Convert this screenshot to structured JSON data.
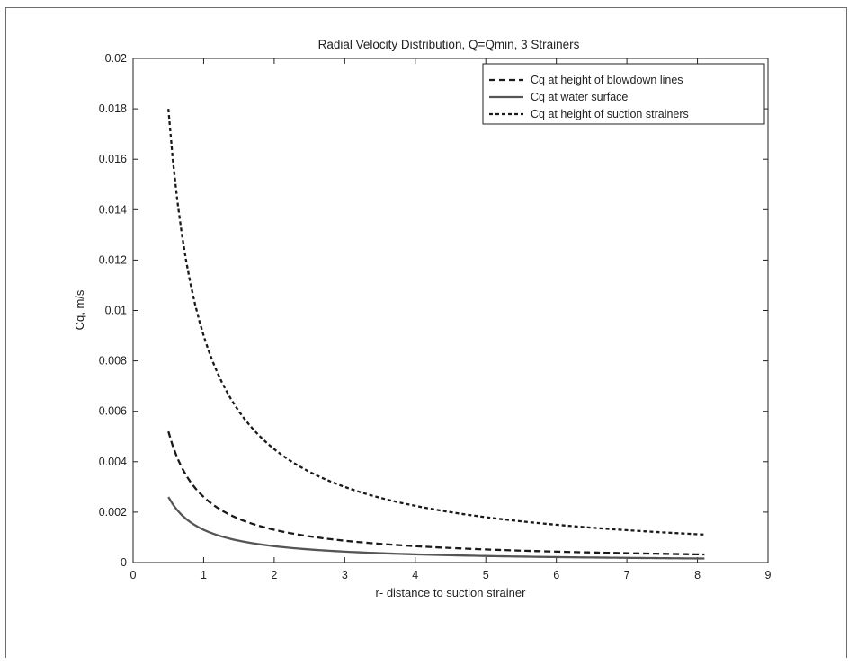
{
  "chart_data": {
    "type": "line",
    "title": "Radial Velocity Distribution, Q=Qmin, 3 Strainers",
    "xlabel": "r- distance to suction strainer",
    "ylabel": "Cq, m/s",
    "xlim": [
      0,
      9
    ],
    "ylim": [
      0,
      0.02
    ],
    "xticks": [
      0,
      1,
      2,
      3,
      4,
      5,
      6,
      7,
      8,
      9
    ],
    "yticks": [
      0,
      0.002,
      0.004,
      0.006,
      0.008,
      0.01,
      0.012,
      0.014,
      0.016,
      0.018,
      0.02
    ],
    "xtick_labels": [
      "0",
      "1",
      "2",
      "3",
      "4",
      "5",
      "6",
      "7",
      "8",
      "9"
    ],
    "ytick_labels": [
      "0",
      "0.002",
      "0.004",
      "0.006",
      "0.008",
      "0.01",
      "0.012",
      "0.014",
      "0.016",
      "0.018",
      "0.02"
    ],
    "legend_position": "top-right",
    "grid": false,
    "series": [
      {
        "name": "Cq at height of blowdown lines",
        "style": "dashed",
        "color": "#1a1a1a",
        "x": [
          0.5,
          0.6,
          0.75,
          1.0,
          1.25,
          1.5,
          2.0,
          2.5,
          3.0,
          3.5,
          4.0,
          4.5,
          5.0,
          5.5,
          6.0,
          6.5,
          7.0,
          7.5,
          8.1
        ],
        "y": [
          0.0052,
          0.00433,
          0.00347,
          0.0026,
          0.00208,
          0.00173,
          0.0013,
          0.00104,
          0.00087,
          0.00074,
          0.00065,
          0.00058,
          0.00052,
          0.00047,
          0.00043,
          0.0004,
          0.00037,
          0.00035,
          0.00032
        ]
      },
      {
        "name": "Cq at water surface",
        "style": "solid",
        "color": "#555555",
        "x": [
          0.5,
          0.6,
          0.75,
          1.0,
          1.25,
          1.5,
          2.0,
          2.5,
          3.0,
          3.5,
          4.0,
          4.5,
          5.0,
          5.5,
          6.0,
          6.5,
          7.0,
          7.5,
          8.1
        ],
        "y": [
          0.0026,
          0.00217,
          0.00173,
          0.0013,
          0.00104,
          0.00087,
          0.00065,
          0.00052,
          0.00043,
          0.00037,
          0.00033,
          0.00029,
          0.00026,
          0.00024,
          0.00022,
          0.0002,
          0.00019,
          0.00017,
          0.00016
        ]
      },
      {
        "name": "Cq at height of suction strainers",
        "style": "dashed",
        "color": "#1a1a1a",
        "x": [
          0.5,
          0.6,
          0.75,
          1.0,
          1.25,
          1.5,
          2.0,
          2.5,
          3.0,
          3.5,
          4.0,
          4.5,
          5.0,
          5.5,
          6.0,
          6.5,
          7.0,
          7.5,
          8.1
        ],
        "y": [
          0.018,
          0.015,
          0.012,
          0.009,
          0.0072,
          0.006,
          0.0045,
          0.0036,
          0.003,
          0.00257,
          0.00225,
          0.002,
          0.0018,
          0.00164,
          0.0015,
          0.00138,
          0.00129,
          0.0012,
          0.00111
        ]
      }
    ]
  }
}
